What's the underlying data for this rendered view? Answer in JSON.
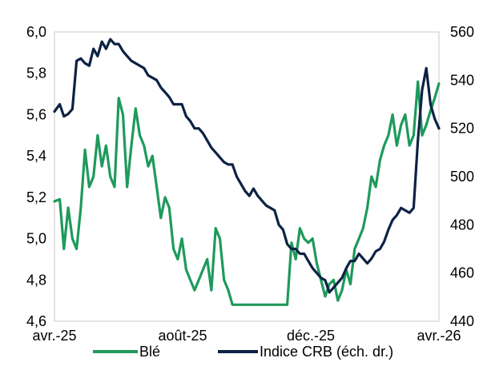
{
  "chart_data": {
    "type": "line",
    "title": "",
    "xlabel": "",
    "ylabel": "",
    "y2label": "",
    "x_ticks": [
      "avr.-25",
      "août-25",
      "déc.-25",
      "avr.-26"
    ],
    "x_range": [
      "2025-04-01",
      "2026-04-01"
    ],
    "ylim": [
      4.6,
      6.0
    ],
    "y_ticks": [
      "4,6",
      "4,8",
      "5,0",
      "5,2",
      "5,4",
      "5,6",
      "5,8",
      "6,0"
    ],
    "y2lim": [
      440,
      560
    ],
    "y2_ticks": [
      "440",
      "460",
      "480",
      "500",
      "520",
      "540",
      "560"
    ],
    "grid": false,
    "legend_position": "bottom",
    "series": [
      {
        "name": "Blé",
        "axis": "left",
        "color": "#1e9a5c",
        "x": [
          "2025-04-01",
          "2025-04-06",
          "2025-04-10",
          "2025-04-14",
          "2025-04-18",
          "2025-04-22",
          "2025-04-26",
          "2025-04-30",
          "2025-05-04",
          "2025-05-08",
          "2025-05-12",
          "2025-05-16",
          "2025-05-20",
          "2025-05-24",
          "2025-05-28",
          "2025-06-01",
          "2025-06-05",
          "2025-06-09",
          "2025-06-13",
          "2025-06-17",
          "2025-06-21",
          "2025-06-25",
          "2025-06-29",
          "2025-07-03",
          "2025-07-07",
          "2025-07-11",
          "2025-07-15",
          "2025-07-19",
          "2025-07-23",
          "2025-07-27",
          "2025-07-31",
          "2025-08-04",
          "2025-08-08",
          "2025-08-12",
          "2025-08-16",
          "2025-08-20",
          "2025-08-24",
          "2025-08-28",
          "2025-09-01",
          "2025-09-05",
          "2025-09-09",
          "2025-09-13",
          "2025-09-17",
          "2025-09-21",
          "2025-09-25",
          "2025-09-29",
          "2025-10-03",
          "2025-10-07",
          "2025-10-11",
          "2025-10-15",
          "2025-10-19",
          "2025-10-23",
          "2025-10-27",
          "2025-10-31",
          "2025-11-04",
          "2025-11-08",
          "2025-11-12",
          "2025-11-16",
          "2025-11-20",
          "2025-11-24",
          "2025-11-28",
          "2025-12-02",
          "2025-12-06",
          "2025-12-10",
          "2025-12-14",
          "2025-12-18",
          "2025-12-22",
          "2025-12-26",
          "2025-12-30",
          "2026-01-03",
          "2026-01-07",
          "2026-01-11",
          "2026-01-15",
          "2026-01-19",
          "2026-01-23",
          "2026-01-27",
          "2026-01-31",
          "2026-02-04",
          "2026-02-08",
          "2026-02-12",
          "2026-02-16",
          "2026-02-20",
          "2026-02-24",
          "2026-02-28",
          "2026-03-04",
          "2026-03-08",
          "2026-03-12",
          "2026-03-16",
          "2026-03-20",
          "2026-03-24",
          "2026-03-28",
          "2026-04-01"
        ],
        "values": [
          5.18,
          5.19,
          4.95,
          5.15,
          5.0,
          4.95,
          5.15,
          5.43,
          5.25,
          5.3,
          5.5,
          5.35,
          5.45,
          5.3,
          5.25,
          5.68,
          5.6,
          5.25,
          5.45,
          5.63,
          5.5,
          5.45,
          5.35,
          5.4,
          5.25,
          5.1,
          5.2,
          5.15,
          4.95,
          4.9,
          5.0,
          4.85,
          4.8,
          4.75,
          4.8,
          4.85,
          4.9,
          4.75,
          5.05,
          5.0,
          4.8,
          4.75,
          4.68,
          4.68,
          4.68,
          4.68,
          4.68,
          4.68,
          4.68,
          4.68,
          4.68,
          4.68,
          4.68,
          4.68,
          4.68,
          4.68,
          4.98,
          4.9,
          5.05,
          5.0,
          4.98,
          5.0,
          4.88,
          4.8,
          4.72,
          4.78,
          4.8,
          4.7,
          4.75,
          4.85,
          4.78,
          4.95,
          5.0,
          5.05,
          5.15,
          5.3,
          5.25,
          5.38,
          5.45,
          5.5,
          5.6,
          5.45,
          5.55,
          5.6,
          5.45,
          5.5,
          5.76,
          5.5,
          5.55,
          5.62,
          5.68,
          5.75
        ]
      },
      {
        "name": "Indice CRB (éch. dr.)",
        "axis": "right",
        "color": "#0d2244",
        "x": [
          "2025-04-01",
          "2025-04-06",
          "2025-04-10",
          "2025-04-14",
          "2025-04-18",
          "2025-04-22",
          "2025-04-26",
          "2025-04-30",
          "2025-05-04",
          "2025-05-08",
          "2025-05-12",
          "2025-05-16",
          "2025-05-20",
          "2025-05-24",
          "2025-05-28",
          "2025-06-01",
          "2025-06-05",
          "2025-06-09",
          "2025-06-13",
          "2025-06-17",
          "2025-06-21",
          "2025-06-25",
          "2025-06-29",
          "2025-07-03",
          "2025-07-07",
          "2025-07-11",
          "2025-07-15",
          "2025-07-19",
          "2025-07-23",
          "2025-07-27",
          "2025-07-31",
          "2025-08-04",
          "2025-08-08",
          "2025-08-12",
          "2025-08-16",
          "2025-08-20",
          "2025-08-24",
          "2025-08-28",
          "2025-09-01",
          "2025-09-05",
          "2025-09-09",
          "2025-09-13",
          "2025-09-17",
          "2025-09-21",
          "2025-09-25",
          "2025-09-29",
          "2025-10-03",
          "2025-10-07",
          "2025-10-11",
          "2025-10-15",
          "2025-10-19",
          "2025-10-23",
          "2025-10-27",
          "2025-10-31",
          "2025-11-04",
          "2025-11-08",
          "2025-11-12",
          "2025-11-16",
          "2025-11-20",
          "2025-11-24",
          "2025-11-28",
          "2025-12-02",
          "2025-12-06",
          "2025-12-10",
          "2025-12-14",
          "2025-12-18",
          "2025-12-22",
          "2025-12-26",
          "2025-12-30",
          "2026-01-03",
          "2026-01-07",
          "2026-01-11",
          "2026-01-15",
          "2026-01-19",
          "2026-01-23",
          "2026-01-27",
          "2026-01-31",
          "2026-02-04",
          "2026-02-08",
          "2026-02-12",
          "2026-02-16",
          "2026-02-20",
          "2026-02-24",
          "2026-02-28",
          "2026-03-04",
          "2026-03-08",
          "2026-03-12",
          "2026-03-16",
          "2026-03-20",
          "2026-03-24",
          "2026-03-28",
          "2026-04-01"
        ],
        "values": [
          527,
          530,
          525,
          526,
          528,
          548,
          549,
          547,
          546,
          553,
          550,
          556,
          553,
          557,
          555,
          555,
          552,
          550,
          548,
          547,
          546,
          545,
          542,
          541,
          540,
          537,
          535,
          533,
          530,
          530,
          530,
          525,
          523,
          520,
          520,
          518,
          515,
          512,
          510,
          508,
          506,
          505,
          505,
          500,
          497,
          494,
          492,
          495,
          492,
          490,
          488,
          487,
          486,
          480,
          478,
          472,
          470,
          470,
          468,
          468,
          465,
          462,
          460,
          458,
          457,
          452,
          454,
          456,
          458,
          462,
          465,
          465,
          468,
          466,
          464,
          466,
          469,
          470,
          473,
          478,
          482,
          484,
          487,
          486,
          485,
          487,
          515,
          536,
          545,
          530,
          524,
          520
        ]
      }
    ]
  }
}
